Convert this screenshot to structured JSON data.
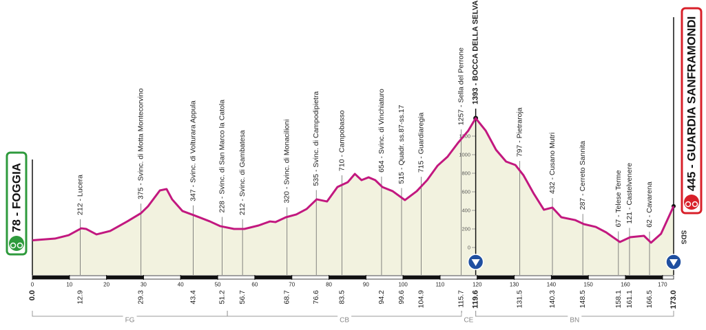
{
  "chart_data": {
    "type": "area",
    "color": "#c2187f",
    "fill": "#f2f2df",
    "x": [
      0,
      6.1,
      9.8,
      13.2,
      14.5,
      17.3,
      21,
      25.6,
      29.3,
      31.2,
      34.4,
      36.2,
      37.7,
      40.5,
      44,
      47.9,
      50.7,
      54.4,
      57.2,
      61,
      64.1,
      65.6,
      68.4,
      71.2,
      74,
      76.7,
      79.5,
      82.3,
      85.1,
      87,
      88.8,
      90.7,
      92.5,
      94.4,
      97.2,
      100.5,
      103.7,
      106.5,
      109.3,
      112,
      114.8,
      117.6,
      119.6,
      122.3,
      125.1,
      127.8,
      130.3,
      132.5,
      135.3,
      138,
      140.3,
      142.7,
      146.4,
      148.8,
      152,
      154.8,
      158.5,
      161.3,
      165,
      166.9,
      169.6,
      173
    ],
    "values": [
      78,
      96,
      133,
      207,
      200,
      141,
      178,
      281,
      370,
      444,
      615,
      630,
      519,
      393,
      341,
      281,
      230,
      200,
      200,
      237,
      281,
      274,
      326,
      356,
      415,
      519,
      496,
      652,
      704,
      793,
      726,
      756,
      726,
      652,
      607,
      511,
      607,
      726,
      881,
      978,
      1126,
      1259,
      1393,
      1259,
      1052,
      926,
      889,
      778,
      578,
      407,
      430,
      326,
      296,
      252,
      222,
      163,
      59,
      111,
      126,
      52,
      148,
      445
    ],
    "xlim": [
      0,
      173
    ],
    "xticks": [
      0,
      10,
      20,
      30,
      40,
      50,
      60,
      70,
      80,
      90,
      100,
      110,
      120,
      130,
      140,
      150,
      160,
      170
    ],
    "ylim": [
      0,
      1400
    ],
    "yticks": [
      0,
      200,
      400,
      600,
      800,
      1000,
      1200
    ],
    "start": {
      "km": {
        "value": 0,
        "label": "0.0"
      },
      "label": "78 - FOGGIA"
    },
    "finish": {
      "km": {
        "value": 173,
        "label": "173.0"
      },
      "label": "445 - GUARDIA SANFRAMONDI",
      "badge": "SDS"
    },
    "waypoints": [
      {
        "km": 12.9,
        "label": "212 - Lucera"
      },
      {
        "km": 29.3,
        "label": "375 - Svinc. di Motta Montecorvino"
      },
      {
        "km": 43.4,
        "label": "347 - Svinc. di Volturara Appula"
      },
      {
        "km": 51.2,
        "label": "228 - Svinc. di San Marco la Catola"
      },
      {
        "km": 56.7,
        "label": "212 - Svinc. di Gambatesa"
      },
      {
        "km": 68.7,
        "label": "320 - Svinc. di Monacilioni"
      },
      {
        "km": 76.6,
        "label": "535 - Svinc. di Campodipietra"
      },
      {
        "km": 83.5,
        "label": "710 - Campobasso"
      },
      {
        "km": 94.2,
        "label": "654 - Svinc. di Vinchiaturo"
      },
      {
        "km": 99.6,
        "label": "515 - Quadr. ss.87-ss.17"
      },
      {
        "km": 104.9,
        "label": "715 - Guardiaregia"
      },
      {
        "km": 115.7,
        "label": "1257 - Sella del Perrone"
      },
      {
        "km": 119.6,
        "label": "1393 - BOCCA DELLA SELVA",
        "summit": true
      },
      {
        "km": 131.5,
        "label": "797 - Pietraroja"
      },
      {
        "km": 140.3,
        "label": "432 - Cusano Mutri"
      },
      {
        "km": 148.5,
        "label": "287 - Cerreto Sannita"
      },
      {
        "km": 158.1,
        "label": "67 - Telese Terme"
      },
      {
        "km": 161.1,
        "label": "121 - Castelvenere"
      },
      {
        "km": 166.5,
        "label": "62 - Cavarena"
      }
    ],
    "sections": [
      {
        "name": "FG",
        "from": 0,
        "to": 52.6
      },
      {
        "name": "CB",
        "from": 52.6,
        "to": 115.8
      },
      {
        "name": "CE",
        "from": 115.8,
        "to": 119.6
      },
      {
        "name": "BN",
        "from": 119.6,
        "to": 173
      }
    ]
  }
}
